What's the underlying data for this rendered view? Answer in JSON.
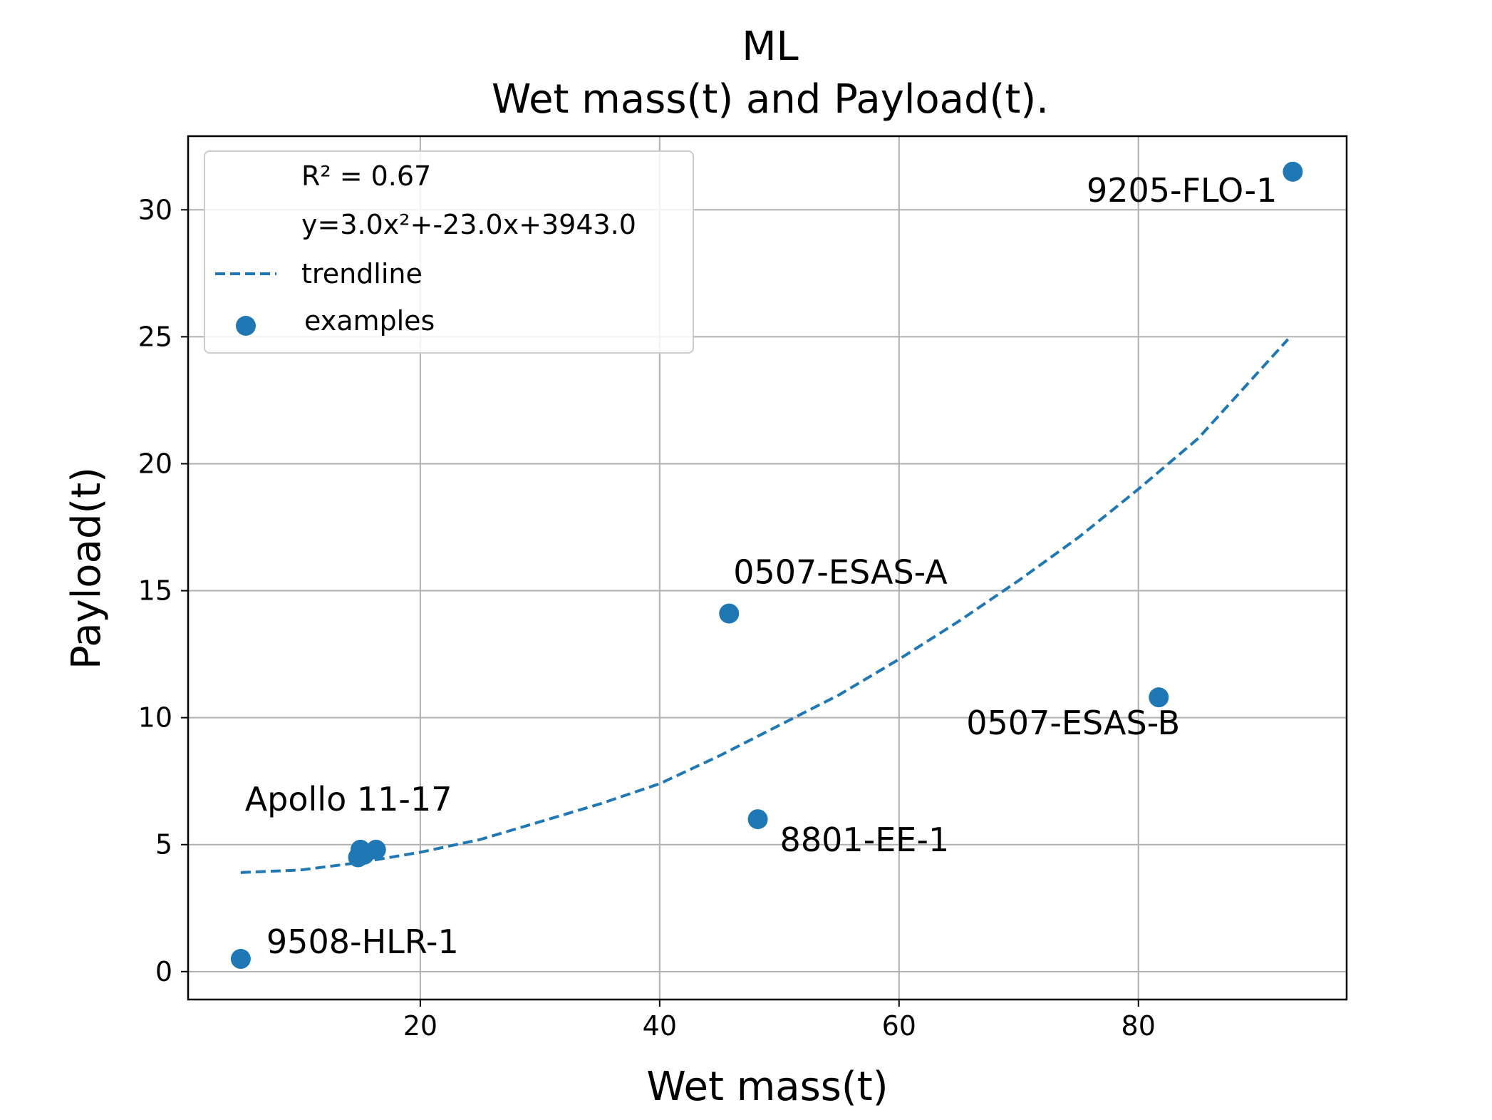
{
  "chart_data": {
    "type": "scatter",
    "title": "ML",
    "subtitle": "Wet mass(t) and Payload(t).",
    "xlabel": "Wet mass(t)",
    "ylabel": "Payload(t)",
    "xlim": [
      0.6,
      97.4
    ],
    "ylim": [
      -1.1,
      32.9
    ],
    "xticks": [
      20,
      40,
      60,
      80
    ],
    "yticks": [
      0,
      5,
      10,
      15,
      20,
      25,
      30
    ],
    "grid": true,
    "legend_position": "top-left",
    "legend": {
      "stats": [
        "R² = 0.67",
        "y=3.0x²+-23.0x+3943.0"
      ],
      "entries": [
        {
          "label": "trendline",
          "kind": "dashed-line"
        },
        {
          "label": "examples",
          "kind": "marker"
        }
      ]
    },
    "color": "#1f77b4",
    "series": [
      {
        "name": "examples",
        "points": [
          {
            "x": 5.0,
            "y": 0.5,
            "label": "9508-HLR-1"
          },
          {
            "x": 14.8,
            "y": 4.5
          },
          {
            "x": 15.0,
            "y": 4.8
          },
          {
            "x": 15.3,
            "y": 4.6
          },
          {
            "x": 16.3,
            "y": 4.8,
            "label": "Apollo 11-17"
          },
          {
            "x": 45.8,
            "y": 14.1,
            "label": "0507-ESAS-A"
          },
          {
            "x": 48.2,
            "y": 6.0,
            "label": "8801-EE-1"
          },
          {
            "x": 81.7,
            "y": 10.8,
            "label": "0507-ESAS-B"
          },
          {
            "x": 92.9,
            "y": 31.5,
            "label": "9205-FLO-1"
          }
        ]
      }
    ],
    "trendline": {
      "name": "trendline",
      "x": [
        5,
        10,
        15,
        20,
        25,
        30,
        35,
        40,
        45,
        50,
        55,
        60,
        65,
        70,
        75,
        80,
        85,
        92.5
      ],
      "y": [
        3.9,
        4.0,
        4.3,
        4.7,
        5.2,
        5.9,
        6.6,
        7.4,
        8.5,
        9.7,
        10.9,
        12.3,
        13.8,
        15.4,
        17.1,
        19.0,
        21.0,
        24.9
      ]
    }
  }
}
